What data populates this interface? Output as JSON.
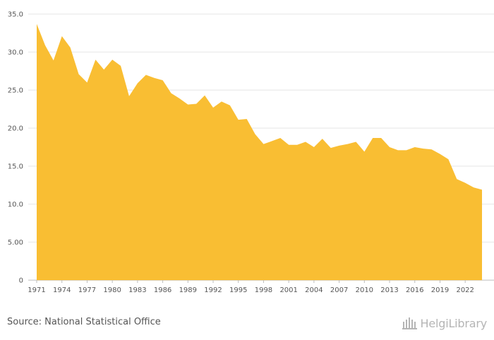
{
  "chart_data": {
    "type": "area",
    "x": [
      1971,
      1972,
      1973,
      1974,
      1975,
      1976,
      1977,
      1978,
      1979,
      1980,
      1981,
      1982,
      1983,
      1984,
      1985,
      1986,
      1987,
      1988,
      1989,
      1990,
      1991,
      1992,
      1993,
      1994,
      1995,
      1996,
      1997,
      1998,
      1999,
      2000,
      2001,
      2002,
      2003,
      2004,
      2005,
      2006,
      2007,
      2008,
      2009,
      2010,
      2011,
      2012,
      2013,
      2014,
      2015,
      2016,
      2017,
      2018,
      2019,
      2020,
      2021,
      2022,
      2023,
      2024
    ],
    "values": [
      33.7,
      30.9,
      28.9,
      32.1,
      30.6,
      27.1,
      26.0,
      29.0,
      27.7,
      29.0,
      28.2,
      24.2,
      25.9,
      27.0,
      26.6,
      26.3,
      24.6,
      23.9,
      23.1,
      23.2,
      24.3,
      22.7,
      23.5,
      23.0,
      21.1,
      21.2,
      19.2,
      17.9,
      18.3,
      18.7,
      17.8,
      17.8,
      18.2,
      17.5,
      18.6,
      17.4,
      17.7,
      17.9,
      18.2,
      16.9,
      18.7,
      18.7,
      17.5,
      17.1,
      17.1,
      17.5,
      17.3,
      17.2,
      16.6,
      15.9,
      13.3,
      12.8,
      12.2,
      11.9
    ],
    "x_tick_labels": [
      "1971",
      "1974",
      "1977",
      "1980",
      "1983",
      "1986",
      "1989",
      "1992",
      "1995",
      "1998",
      "2001",
      "2004",
      "2007",
      "2010",
      "2013",
      "2016",
      "2019",
      "2022"
    ],
    "y_tick_labels": [
      "0",
      "5.00",
      "10.0",
      "15.0",
      "20.0",
      "25.0",
      "30.0",
      "35.0"
    ],
    "y_ticks": [
      0,
      5,
      10,
      15,
      20,
      25,
      30,
      35
    ],
    "ylim": [
      0,
      35
    ],
    "xlim": [
      1971,
      2024
    ],
    "grid": true,
    "fill_color": "#F9BE33",
    "title": "",
    "xlabel": "",
    "ylabel": ""
  },
  "footer": {
    "source": "Source: National Statistical Office",
    "brand": "HelgiLibrary"
  },
  "colors": {
    "area": "#F9BE33",
    "grid": "#e6e6e6",
    "text": "#555555",
    "brand": "#b5b5b5"
  }
}
